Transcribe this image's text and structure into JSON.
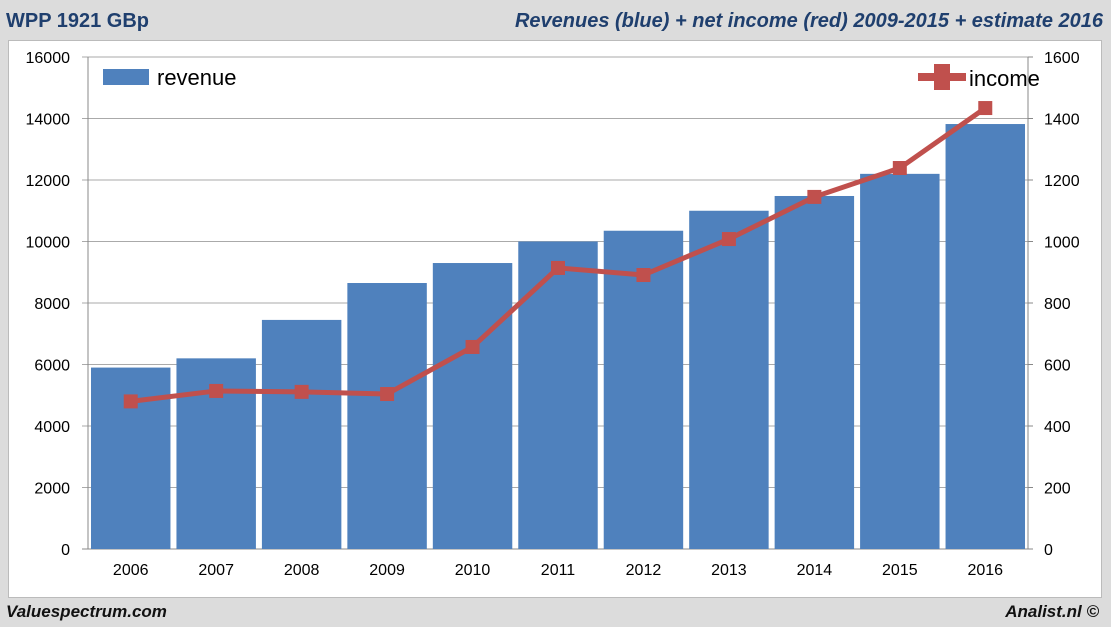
{
  "header": {
    "left_title": "WPP 1921 GBp",
    "right_title": "Revenues (blue) + net income (red) 2009-2015 + estimate 2016"
  },
  "footer": {
    "left": "Valuespectrum.com",
    "right": "Analist.nl ©"
  },
  "chart_data": {
    "type": "bar+line",
    "categories": [
      "2006",
      "2007",
      "2008",
      "2009",
      "2010",
      "2011",
      "2012",
      "2013",
      "2014",
      "2015",
      "2016"
    ],
    "series": [
      {
        "name": "revenue",
        "type": "bar",
        "axis": "left",
        "color": "#4f81bd",
        "values": [
          5900,
          6200,
          7450,
          8650,
          9300,
          10000,
          10350,
          11000,
          11480,
          12200,
          13820
        ]
      },
      {
        "name": "income",
        "type": "line",
        "axis": "right",
        "color": "#c0504d",
        "values": [
          480,
          514,
          511,
          504,
          657,
          914,
          891,
          1008,
          1145,
          1239,
          1434
        ]
      }
    ],
    "y_left": {
      "range": [
        0,
        16000
      ],
      "ticks": [
        "0",
        "2000",
        "4000",
        "6000",
        "8000",
        "10000",
        "12000",
        "14000",
        "16000"
      ]
    },
    "y_right": {
      "range": [
        0,
        1600
      ],
      "ticks": [
        "0",
        "200",
        "400",
        "600",
        "800",
        "1000",
        "1200",
        "1400",
        "1600"
      ]
    },
    "grid": true,
    "legend": [
      "top-left",
      "top-right"
    ]
  }
}
